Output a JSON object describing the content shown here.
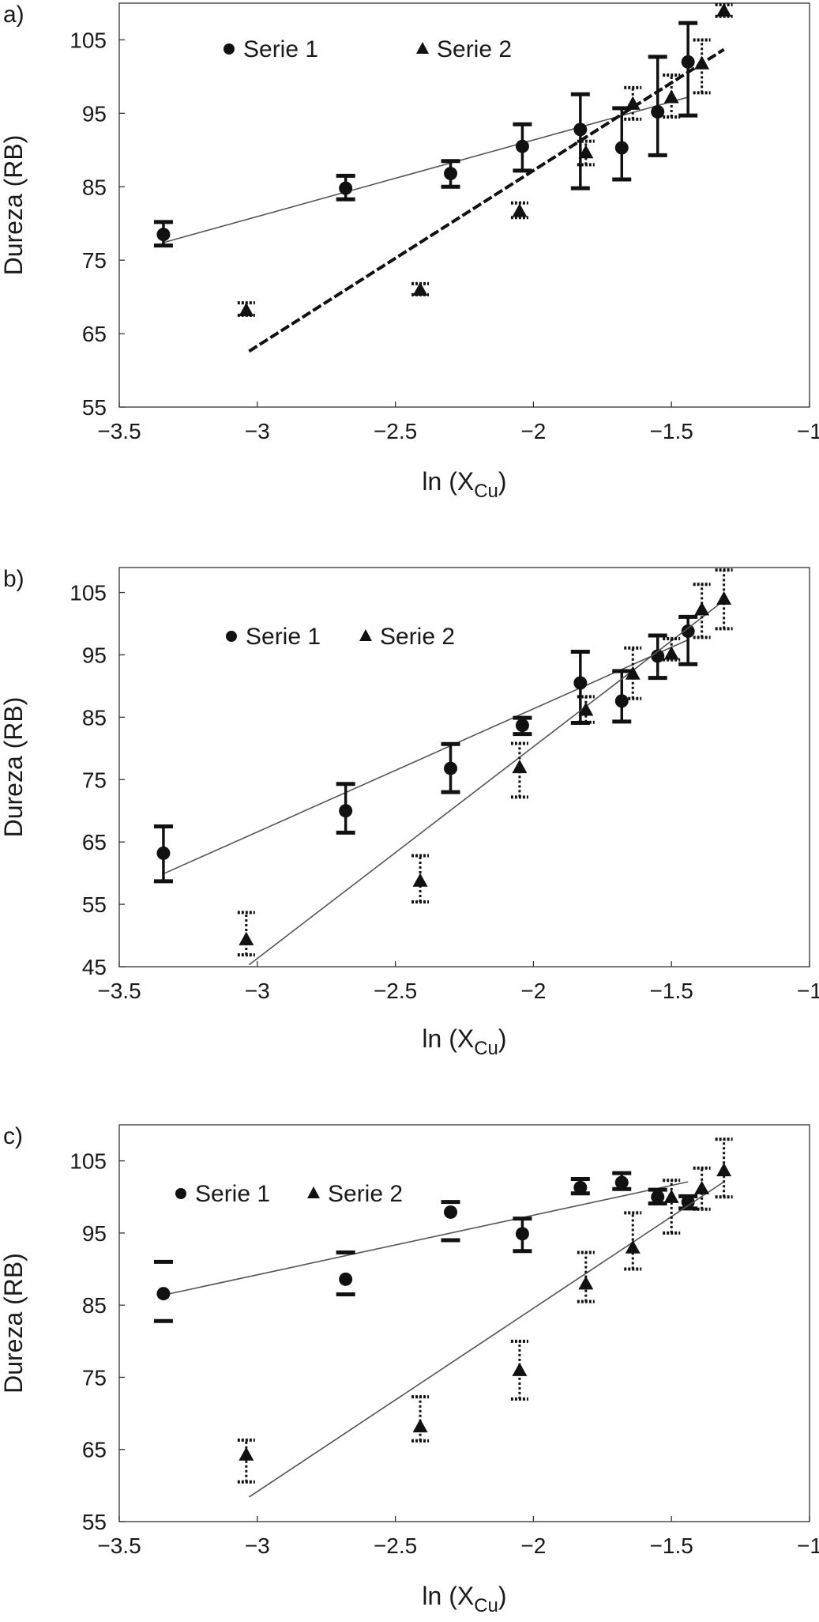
{
  "chart_data": [
    {
      "panel_label": "a)",
      "type": "scatter",
      "xlabel_main": "ln (X",
      "xlabel_sub": "Cu",
      "xlabel_end": ")",
      "ylabel": "Dureza (RB)",
      "xlim": [
        -3.5,
        -1
      ],
      "ylim": [
        55,
        110
      ],
      "xticks": [
        -3.5,
        -3,
        -2.5,
        -2,
        -1.5,
        -1
      ],
      "xtick_labels": [
        "−3.5",
        "−3",
        "−2.5",
        "−2",
        "−1.5",
        "−1"
      ],
      "yticks": [
        55,
        65,
        75,
        85,
        95,
        105
      ],
      "ytick_labels": [
        "55",
        "65",
        "75",
        "85",
        "95",
        "105"
      ],
      "legend_placement": "top",
      "series": [
        {
          "name": "Serie 1",
          "marker": "circle",
          "errbar_style": "solid",
          "x": [
            -3.34,
            -2.68,
            -2.3,
            -2.04,
            -1.83,
            -1.68,
            -1.55,
            -1.44
          ],
          "y": [
            78.5,
            84.8,
            86.8,
            90.5,
            92.8,
            90.3,
            95.2,
            102
          ],
          "err_low": [
            77,
            83.3,
            85,
            87.2,
            84.8,
            86,
            89.3,
            94.7
          ],
          "err_high": [
            80.2,
            86.5,
            88.5,
            93.5,
            97.6,
            95.7,
            102.7,
            107.3
          ],
          "trend": {
            "x": [
              -3.34,
              -1.44
            ],
            "y": [
              77.4,
              97.2
            ]
          }
        },
        {
          "name": "Serie 2",
          "marker": "triangle",
          "errbar_style": "dotted",
          "x": [
            -3.04,
            -2.41,
            -2.05,
            -1.81,
            -1.64,
            -1.5,
            -1.39,
            -1.31
          ],
          "y": [
            68.2,
            71,
            81.7,
            89.7,
            96.3,
            97.2,
            101.8,
            109
          ],
          "err_low": [
            67.5,
            70.3,
            80.8,
            88,
            94.2,
            94.5,
            97.8,
            108.2
          ],
          "err_high": [
            69.2,
            71.8,
            82.8,
            91.2,
            98.5,
            100.2,
            105,
            109.8
          ],
          "trend": {
            "x": [
              -3.03,
              -1.31
            ],
            "y": [
              62.6,
              103.7
            ]
          }
        }
      ]
    },
    {
      "panel_label": "b)",
      "type": "scatter",
      "xlabel_main": "ln (X",
      "xlabel_sub": "Cu",
      "xlabel_end": ")",
      "ylabel": "Dureza (RB)",
      "xlim": [
        -3.5,
        -1
      ],
      "ylim": [
        45,
        109
      ],
      "xticks": [
        -3.5,
        -3,
        -2.5,
        -2,
        -1.5,
        -1
      ],
      "xtick_labels": [
        "−3.5",
        "−3",
        "−2.5",
        "−2",
        "−1.5",
        "−1"
      ],
      "yticks": [
        45,
        55,
        65,
        75,
        85,
        95,
        105
      ],
      "ytick_labels": [
        "45",
        "55",
        "65",
        "75",
        "85",
        "95",
        "105"
      ],
      "legend_placement": "top-left",
      "series": [
        {
          "name": "Serie 1",
          "marker": "circle",
          "errbar_style": "solid",
          "x": [
            -3.34,
            -2.68,
            -2.3,
            -2.04,
            -1.83,
            -1.68,
            -1.55,
            -1.44
          ],
          "y": [
            63.2,
            70,
            76.8,
            83.7,
            90.5,
            87.6,
            94.8,
            98.8
          ],
          "err_low": [
            58.7,
            66.5,
            73,
            82.3,
            84.1,
            84.3,
            91.3,
            93.5
          ],
          "err_high": [
            67.5,
            74.3,
            80.7,
            84.9,
            95.5,
            92.4,
            98.1,
            101.1
          ],
          "trend": {
            "x": [
              -3.34,
              -1.44
            ],
            "y": [
              59.9,
              97.4
            ]
          }
        },
        {
          "name": "Serie 2",
          "marker": "triangle",
          "errbar_style": "dotted",
          "x": [
            -3.04,
            -2.41,
            -2.05,
            -1.81,
            -1.64,
            -1.5,
            -1.39,
            -1.31
          ],
          "y": [
            49.4,
            58.8,
            77,
            86.2,
            92,
            95.2,
            102.3,
            104
          ],
          "err_low": [
            46.9,
            55.4,
            72.2,
            84.2,
            88,
            94.2,
            97.8,
            99.2
          ],
          "err_high": [
            53.7,
            62.8,
            80.8,
            88.3,
            96.1,
            97.6,
            106.3,
            108.6
          ],
          "trend": {
            "x": [
              -3.03,
              -1.31
            ],
            "y": [
              45.3,
              103.7
            ]
          }
        }
      ]
    },
    {
      "panel_label": "c)",
      "type": "scatter",
      "xlabel_main": "ln (X",
      "xlabel_sub": "Cu",
      "xlabel_end": ")",
      "ylabel": "Dureza (RB)",
      "xlim": [
        -3.5,
        -1
      ],
      "ylim": [
        55,
        110
      ],
      "xticks": [
        -3.5,
        -3,
        -2.5,
        -2,
        -1.5,
        -1
      ],
      "xtick_labels": [
        "−3.5",
        "−3",
        "−2.5",
        "−2",
        "−1.5",
        "−1"
      ],
      "yticks": [
        55,
        65,
        75,
        85,
        95,
        105
      ],
      "ytick_labels": [
        "55",
        "65",
        "75",
        "85",
        "95",
        "105"
      ],
      "legend_placement": "top-left",
      "series": [
        {
          "name": "Serie 1",
          "marker": "circle",
          "errbar_style": "solid",
          "x": [
            -3.34,
            -2.68,
            -2.3,
            -2.04,
            -1.83,
            -1.68,
            -1.55,
            -1.44
          ],
          "y": [
            86.6,
            88.6,
            97.9,
            94.9,
            101.3,
            102,
            100,
            99.3
          ],
          "err_low": [
            82.8,
            86.5,
            94,
            92.5,
            100.5,
            101.1,
            99.1,
            98.4
          ],
          "err_high": [
            91,
            92.3,
            99.3,
            97,
            102.5,
            103.3,
            101,
            100.1
          ],
          "caps_only": [
            true,
            true,
            true,
            false,
            false,
            false,
            false,
            false
          ],
          "trend": {
            "x": [
              -3.34,
              -1.44
            ],
            "y": [
              86.4,
              102.1
            ]
          }
        },
        {
          "name": "Serie 2",
          "marker": "triangle",
          "errbar_style": "dotted",
          "x": [
            -3.04,
            -2.41,
            -2.05,
            -1.81,
            -1.64,
            -1.5,
            -1.39,
            -1.31
          ],
          "y": [
            64.3,
            68.2,
            76,
            88,
            93,
            100,
            101.2,
            103.7
          ],
          "err_low": [
            60.5,
            66.2,
            72,
            85.5,
            90,
            95,
            98.3,
            100
          ],
          "err_high": [
            66.3,
            72.3,
            80,
            92.3,
            97.8,
            102.3,
            104,
            108
          ],
          "trend": {
            "x": [
              -3.03,
              -1.31
            ],
            "y": [
              58.4,
              102.1
            ]
          }
        }
      ]
    }
  ]
}
